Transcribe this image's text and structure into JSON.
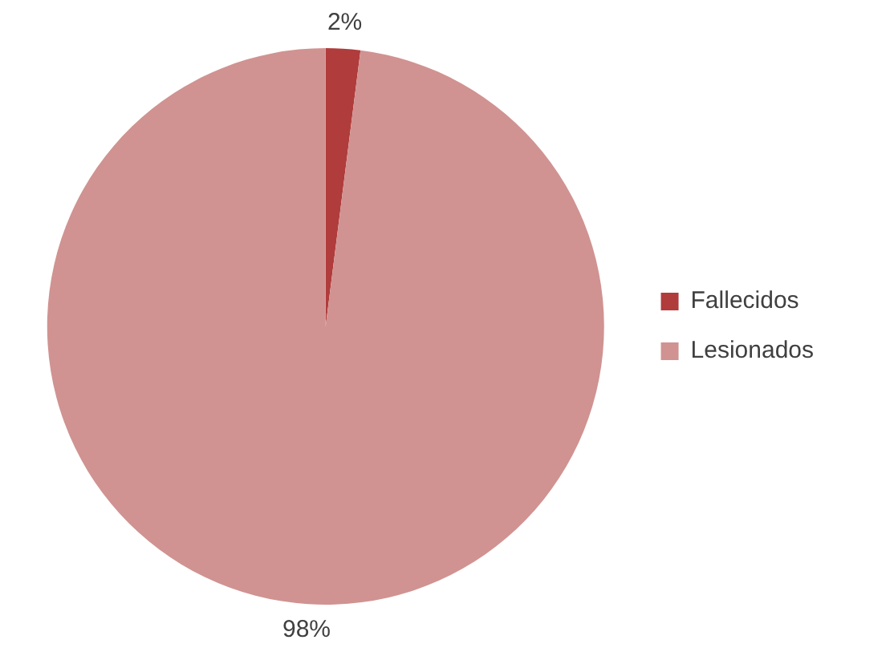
{
  "chart_data": {
    "type": "pie",
    "categories": [
      "Fallecidos",
      "Lesionados"
    ],
    "values": [
      2,
      98
    ],
    "colors": [
      "#b03c3c",
      "#d09391"
    ],
    "value_labels": [
      "2%",
      "98%"
    ],
    "legend": "right"
  }
}
